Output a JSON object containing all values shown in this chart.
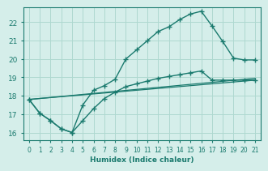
{
  "xlabel": "Humidex (Indice chaleur)",
  "bg_color": "#d5eeea",
  "line_color": "#1a7a6e",
  "grid_color": "#aed8d0",
  "xlim": [
    -0.5,
    21.5
  ],
  "ylim": [
    15.6,
    22.8
  ],
  "xticks": [
    0,
    1,
    2,
    3,
    4,
    5,
    6,
    7,
    8,
    9,
    10,
    11,
    12,
    13,
    14,
    15,
    16,
    17,
    18,
    19,
    20,
    21
  ],
  "yticks": [
    16,
    17,
    18,
    19,
    20,
    21,
    22
  ],
  "line1_x": [
    0,
    1,
    2,
    3,
    4,
    5,
    6,
    7,
    8,
    9,
    10,
    11,
    12,
    13,
    14,
    15,
    16,
    17,
    18,
    19,
    20,
    21
  ],
  "line1_y": [
    17.8,
    17.05,
    16.65,
    16.2,
    16.0,
    17.5,
    18.3,
    18.55,
    18.9,
    20.0,
    20.5,
    21.0,
    21.5,
    21.75,
    22.15,
    22.45,
    22.6,
    21.8,
    20.95,
    20.05,
    19.95,
    19.95
  ],
  "line2_x": [
    0,
    1,
    2,
    3,
    4,
    5,
    6,
    7,
    8,
    9,
    10,
    11,
    12,
    13,
    14,
    15,
    16,
    17,
    18,
    19,
    20,
    21
  ],
  "line2_y": [
    17.8,
    17.05,
    16.65,
    16.2,
    16.0,
    16.65,
    17.3,
    17.85,
    18.2,
    18.5,
    18.65,
    18.8,
    18.95,
    19.05,
    19.15,
    19.25,
    19.35,
    18.85,
    18.85,
    18.85,
    18.85,
    18.85
  ],
  "line3_x": [
    0,
    21
  ],
  "line3_y": [
    17.8,
    18.85
  ],
  "line4_x": [
    0,
    21
  ],
  "line4_y": [
    17.8,
    18.95
  ]
}
